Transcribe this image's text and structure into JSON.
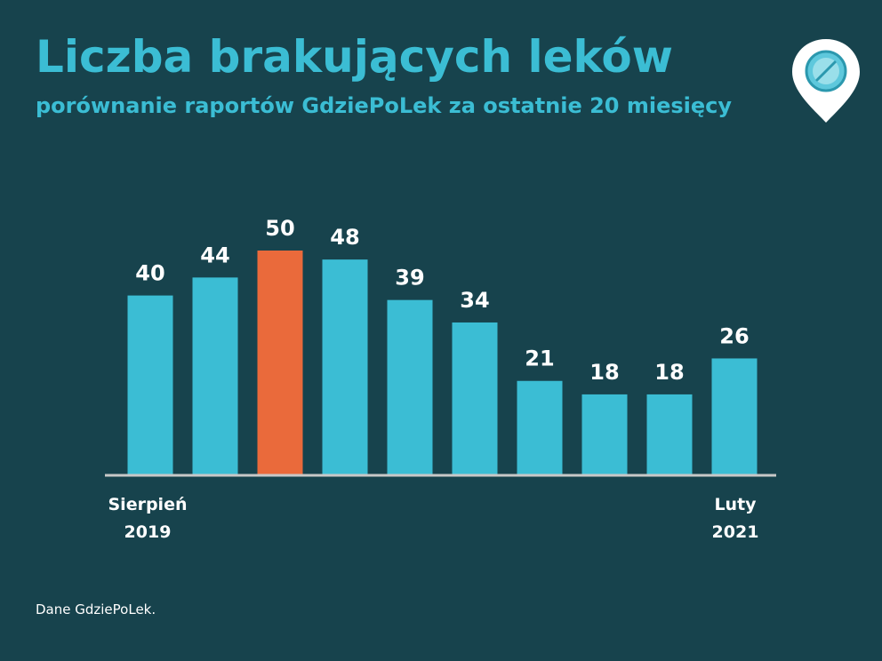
{
  "title": "Liczba brakujących leków",
  "subtitle": "porównanie raportów GdziePoLek za ostatnie 20 miesięcy",
  "source": "Dane GdziePoLek.",
  "logo_icon": "map-pin-pill-icon",
  "colors": {
    "background": "#17434d",
    "bar": "#3bbdd4",
    "highlight": "#ea6a3b",
    "text": "#ffffff",
    "axis": "#c8c8c8"
  },
  "chart_data": {
    "type": "bar",
    "categories": [
      "",
      "",
      "",
      "",
      "",
      "",
      "",
      "",
      "",
      ""
    ],
    "values": [
      40,
      44,
      50,
      48,
      39,
      34,
      21,
      18,
      18,
      26
    ],
    "highlight_index": 2,
    "x_first_label": [
      "Sierpień",
      "2019"
    ],
    "x_last_label": [
      "Luty",
      "2021"
    ],
    "ylim": [
      0,
      50
    ],
    "grid": false,
    "legend": "none"
  }
}
